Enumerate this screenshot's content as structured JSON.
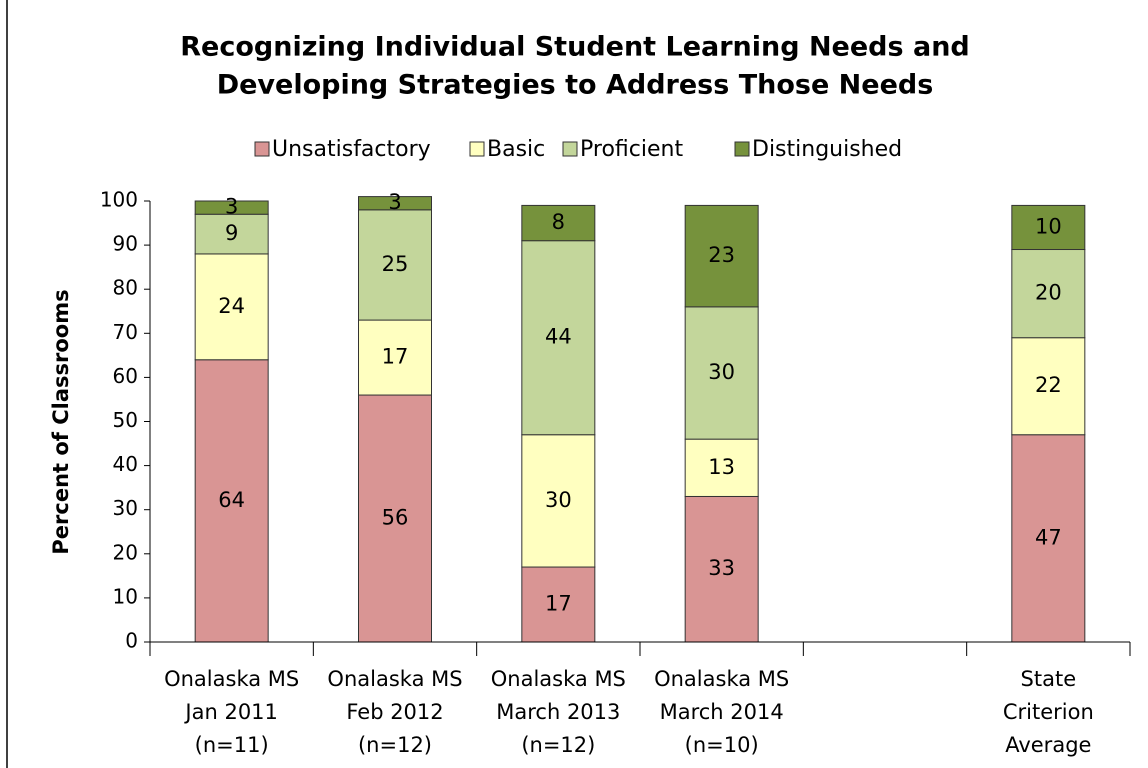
{
  "chart_data": {
    "type": "stacked_bar",
    "title": [
      "Recognizing Individual Student Learning Needs and",
      "Developing Strategies to Address Those Needs"
    ],
    "ylabel": "Percent of Classrooms",
    "categories": [
      [
        "Onalaska MS",
        "Jan 2011",
        "(n=11)"
      ],
      [
        "Onalaska MS",
        "Feb 2012",
        "(n=12)"
      ],
      [
        "Onalaska MS",
        "March 2013",
        "(n=12)"
      ],
      [
        "Onalaska MS",
        "March 2014",
        "(n=10)"
      ],
      null,
      [
        "State",
        "Criterion",
        "Average"
      ]
    ],
    "series": [
      {
        "name": "Unsatisfactory",
        "color": "#d99594",
        "values": [
          64,
          56,
          17,
          33,
          null,
          47
        ]
      },
      {
        "name": "Basic",
        "color": "#ffffc0",
        "values": [
          24,
          17,
          30,
          13,
          null,
          22
        ]
      },
      {
        "name": "Proficient",
        "color": "#c3d69b",
        "values": [
          9,
          25,
          44,
          30,
          null,
          20
        ]
      },
      {
        "name": "Distinguished",
        "color": "#76923c",
        "values": [
          3,
          3,
          8,
          23,
          null,
          10
        ]
      }
    ],
    "ylim": [
      0,
      100
    ],
    "yticks": [
      0,
      10,
      20,
      30,
      40,
      50,
      60,
      70,
      80,
      90,
      100
    ],
    "legend": "top"
  }
}
